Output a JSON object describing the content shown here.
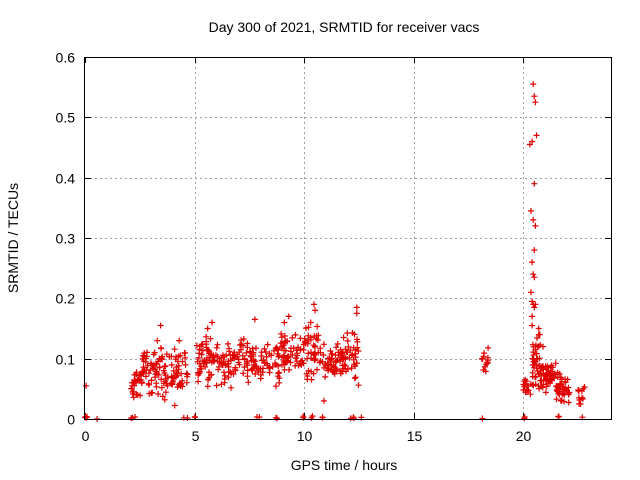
{
  "chart_data": {
    "type": "scatter",
    "title": "Day 300 of 2021, SRMTID for receiver vacs",
    "xlabel": "GPS time / hours",
    "ylabel": "SRMTID / TECUs",
    "xlim": [
      0,
      24
    ],
    "ylim": [
      0,
      0.6
    ],
    "x_ticks": [
      0,
      5,
      10,
      15,
      20
    ],
    "x_tick_labels": [
      "0",
      "5",
      "10",
      "15",
      "20"
    ],
    "y_ticks": [
      0,
      0.1,
      0.2,
      0.3,
      0.4,
      0.5,
      0.6
    ],
    "y_tick_labels": [
      "0",
      "0.1",
      "0.2",
      "0.3",
      "0.4",
      "0.5",
      "0.6"
    ],
    "grid": true,
    "marker": "plus",
    "color": "#e00000",
    "series": [
      {
        "name": "SRMTID",
        "clusters": [
          {
            "x_range": [
              0.0,
              0.15
            ],
            "y_range": [
              0.0,
              0.005
            ],
            "count": 4
          },
          {
            "x_range": [
              2.1,
              2.3
            ],
            "y_range": [
              0.0,
              0.01
            ],
            "count": 3
          },
          {
            "x_range": [
              4.5,
              4.7
            ],
            "y_range": [
              0.0,
              0.005
            ],
            "count": 2
          },
          {
            "x_range": [
              5.0,
              5.1
            ],
            "y_range": [
              0.0,
              0.005
            ],
            "count": 2
          },
          {
            "x_range": [
              7.8,
              8.0
            ],
            "y_range": [
              0.0,
              0.005
            ],
            "count": 2
          },
          {
            "x_range": [
              8.6,
              8.8
            ],
            "y_range": [
              0.0,
              0.005
            ],
            "count": 2
          },
          {
            "x_range": [
              9.8,
              10.0
            ],
            "y_range": [
              0.0,
              0.005
            ],
            "count": 2
          },
          {
            "x_range": [
              10.3,
              10.4
            ],
            "y_range": [
              0.0,
              0.005
            ],
            "count": 2
          },
          {
            "x_range": [
              10.8,
              10.9
            ],
            "y_range": [
              0.0,
              0.005
            ],
            "count": 2
          },
          {
            "x_range": [
              12.1,
              12.3
            ],
            "y_range": [
              0.0,
              0.005
            ],
            "count": 3
          },
          {
            "x_range": [
              12.6,
              12.7
            ],
            "y_range": [
              0.0,
              0.005
            ],
            "count": 1
          },
          {
            "x_range": [
              18.1,
              18.2
            ],
            "y_range": [
              0.0,
              0.005
            ],
            "count": 1
          },
          {
            "x_range": [
              20.0,
              20.1
            ],
            "y_range": [
              0.0,
              0.005
            ],
            "count": 2
          },
          {
            "x_range": [
              21.5,
              21.7
            ],
            "y_range": [
              0.0,
              0.005
            ],
            "count": 2
          },
          {
            "x_range": [
              22.5,
              22.7
            ],
            "y_range": [
              0.0,
              0.005
            ],
            "count": 1
          },
          {
            "x_range": [
              2.1,
              2.6
            ],
            "y_range": [
              0.02,
              0.09
            ],
            "count": 28
          },
          {
            "x_range": [
              2.6,
              3.6
            ],
            "y_range": [
              0.03,
              0.13
            ],
            "count": 60
          },
          {
            "x_range": [
              3.6,
              4.1
            ],
            "y_range": [
              0.02,
              0.12
            ],
            "count": 30
          },
          {
            "x_range": [
              4.1,
              4.7
            ],
            "y_range": [
              0.03,
              0.12
            ],
            "count": 30
          },
          {
            "x_range": [
              5.1,
              6.0
            ],
            "y_range": [
              0.05,
              0.14
            ],
            "count": 55
          },
          {
            "x_range": [
              6.0,
              7.0
            ],
            "y_range": [
              0.05,
              0.13
            ],
            "count": 50
          },
          {
            "x_range": [
              7.0,
              7.9
            ],
            "y_range": [
              0.06,
              0.14
            ],
            "count": 45
          },
          {
            "x_range": [
              7.9,
              8.9
            ],
            "y_range": [
              0.05,
              0.13
            ],
            "count": 45
          },
          {
            "x_range": [
              8.9,
              9.9
            ],
            "y_range": [
              0.06,
              0.15
            ],
            "count": 55
          },
          {
            "x_range": [
              9.9,
              10.9
            ],
            "y_range": [
              0.06,
              0.16
            ],
            "count": 50
          },
          {
            "x_range": [
              10.9,
              11.9
            ],
            "y_range": [
              0.06,
              0.13
            ],
            "count": 55
          },
          {
            "x_range": [
              11.9,
              12.5
            ],
            "y_range": [
              0.04,
              0.15
            ],
            "count": 30
          },
          {
            "x_range": [
              18.1,
              18.4
            ],
            "y_range": [
              0.07,
              0.12
            ],
            "count": 14
          },
          {
            "x_range": [
              20.0,
              20.4
            ],
            "y_range": [
              0.04,
              0.07
            ],
            "count": 15
          },
          {
            "x_range": [
              20.4,
              20.9
            ],
            "y_range": [
              0.04,
              0.15
            ],
            "count": 50
          },
          {
            "x_range": [
              20.9,
              21.5
            ],
            "y_range": [
              0.04,
              0.1
            ],
            "count": 45
          },
          {
            "x_range": [
              21.5,
              22.1
            ],
            "y_range": [
              0.02,
              0.08
            ],
            "count": 45
          },
          {
            "x_range": [
              22.5,
              22.8
            ],
            "y_range": [
              0.02,
              0.06
            ],
            "count": 12
          }
        ],
        "points": [
          [
            0.05,
            0.055
          ],
          [
            0.55,
            0.0
          ],
          [
            3.45,
            0.155
          ],
          [
            3.3,
            0.13
          ],
          [
            4.3,
            0.13
          ],
          [
            5.8,
            0.16
          ],
          [
            5.6,
            0.15
          ],
          [
            7.75,
            0.165
          ],
          [
            9.3,
            0.17
          ],
          [
            9.1,
            0.16
          ],
          [
            10.45,
            0.19
          ],
          [
            10.5,
            0.18
          ],
          [
            10.3,
            0.16
          ],
          [
            12.4,
            0.185
          ],
          [
            12.4,
            0.175
          ],
          [
            11.8,
            0.135
          ],
          [
            10.2,
            0.08
          ],
          [
            10.9,
            0.03
          ],
          [
            2.15,
            0.055
          ],
          [
            20.45,
            0.555
          ],
          [
            20.5,
            0.535
          ],
          [
            20.55,
            0.525
          ],
          [
            20.3,
            0.455
          ],
          [
            20.6,
            0.47
          ],
          [
            20.4,
            0.46
          ],
          [
            20.5,
            0.39
          ],
          [
            20.35,
            0.345
          ],
          [
            20.45,
            0.33
          ],
          [
            20.55,
            0.32
          ],
          [
            20.5,
            0.28
          ],
          [
            20.4,
            0.26
          ],
          [
            20.45,
            0.24
          ],
          [
            20.5,
            0.235
          ],
          [
            20.35,
            0.21
          ],
          [
            20.4,
            0.195
          ],
          [
            20.45,
            0.19
          ],
          [
            20.5,
            0.185
          ],
          [
            20.55,
            0.19
          ],
          [
            20.4,
            0.17
          ],
          [
            20.4,
            0.155
          ],
          [
            20.7,
            0.15
          ],
          [
            20.75,
            0.14
          ],
          [
            20.65,
            0.12
          ]
        ]
      }
    ]
  }
}
